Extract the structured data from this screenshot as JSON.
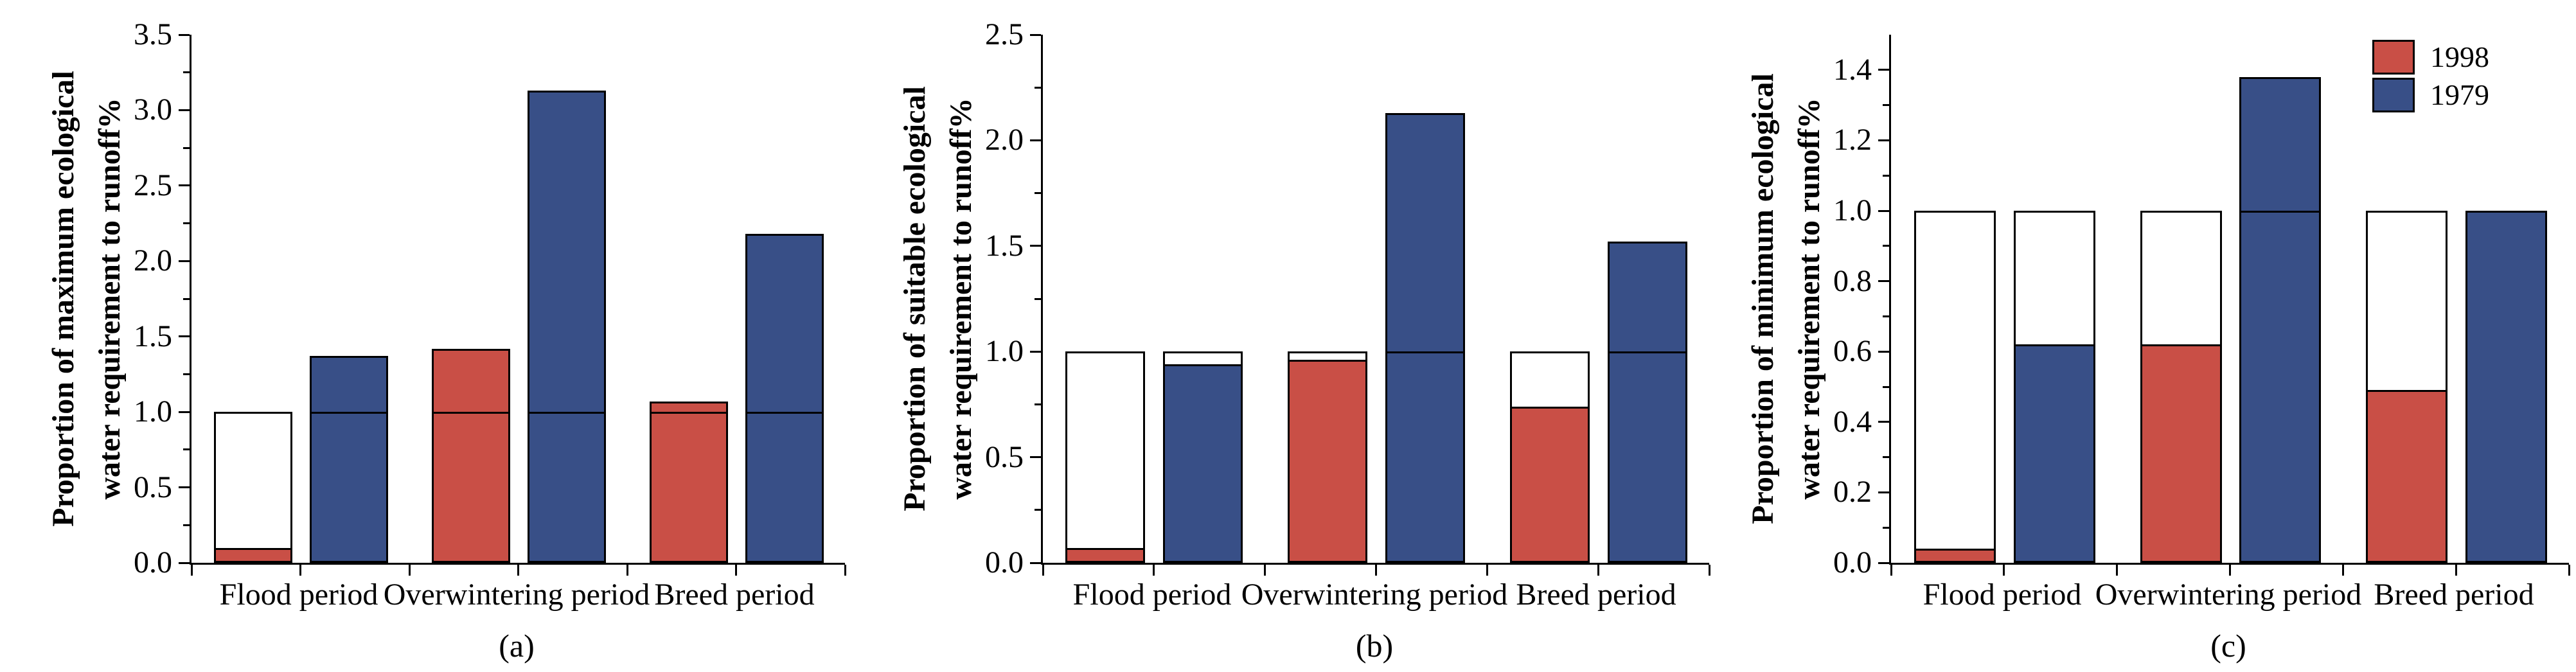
{
  "chart_data": [
    {
      "type": "bar",
      "panel_label": "(a)",
      "title": "",
      "xlabel": "",
      "ylabel": "Proportion of maximum ecological water requirement to runoff%",
      "ylabel_lines": [
        "Proportion of maximum ecological",
        "water requirement to runoff%"
      ],
      "categories": [
        "Flood period",
        "Overwintering period",
        "Breed period"
      ],
      "series": [
        {
          "name": "1998",
          "color": "#c94f46",
          "values": [
            0.1,
            1.42,
            1.07
          ]
        },
        {
          "name": "1979",
          "color": "#384f87",
          "values": [
            1.37,
            3.13,
            2.18
          ]
        }
      ],
      "reference_bar": {
        "value": 1.0,
        "fill": "#ffffff",
        "note": "white outlined bar drawn to 1.0 behind each colored bar; black line marks 1.0"
      },
      "ylim": [
        0,
        3.5
      ],
      "yticks": [
        0.0,
        0.5,
        1.0,
        1.5,
        2.0,
        2.5,
        3.0,
        3.5
      ],
      "minor_tick_step": 0.25,
      "grid": false,
      "legend": null
    },
    {
      "type": "bar",
      "panel_label": "(b)",
      "title": "",
      "xlabel": "",
      "ylabel": "Proportion of suitable ecological water requirement to runoff%",
      "ylabel_lines": [
        "Proportion of suitable ecological",
        "water requirement to runoff%"
      ],
      "categories": [
        "Flood period",
        "Overwintering period",
        "Breed period"
      ],
      "series": [
        {
          "name": "1998",
          "color": "#c94f46",
          "values": [
            0.07,
            0.96,
            0.74
          ]
        },
        {
          "name": "1979",
          "color": "#384f87",
          "values": [
            0.94,
            2.13,
            1.52
          ]
        }
      ],
      "reference_bar": {
        "value": 1.0,
        "fill": "#ffffff",
        "note": "white outlined bar drawn to 1.0 behind each colored bar; black line marks 1.0"
      },
      "ylim": [
        0,
        2.5
      ],
      "yticks": [
        0.0,
        0.5,
        1.0,
        1.5,
        2.0,
        2.5
      ],
      "minor_tick_step": 0.25,
      "grid": false,
      "legend": null
    },
    {
      "type": "bar",
      "panel_label": "(c)",
      "title": "",
      "xlabel": "",
      "ylabel": "Proportion of minimum ecological water requirement to runoff%",
      "ylabel_lines": [
        "Proportion of minimum ecological",
        "water requirement to runoff%"
      ],
      "categories": [
        "Flood period",
        "Overwintering period",
        "Breed period"
      ],
      "series": [
        {
          "name": "1998",
          "color": "#c94f46",
          "values": [
            0.04,
            0.62,
            0.49
          ]
        },
        {
          "name": "1979",
          "color": "#384f87",
          "values": [
            0.62,
            1.38,
            1.0
          ]
        }
      ],
      "reference_bar": {
        "value": 1.0,
        "fill": "#ffffff",
        "note": "white outlined bar drawn to 1.0 behind each colored bar; black line marks 1.0"
      },
      "ylim": [
        0,
        1.5
      ],
      "yticks": [
        0.0,
        0.2,
        0.4,
        0.6,
        0.8,
        1.0,
        1.2,
        1.4
      ],
      "minor_tick_step": 0.1,
      "grid": false,
      "legend": {
        "position": "top-right",
        "entries": [
          {
            "label": "1998"
          },
          {
            "label": "1979"
          }
        ]
      }
    }
  ]
}
